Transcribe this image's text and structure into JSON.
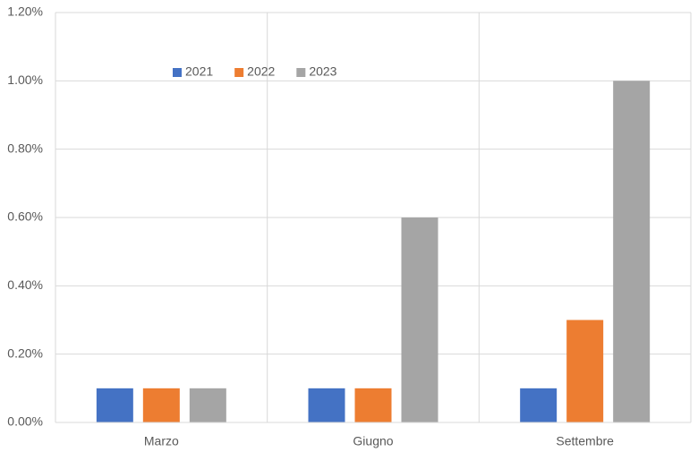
{
  "chart_data": {
    "type": "bar",
    "categories": [
      "Marzo",
      "Giugno",
      "Settembre"
    ],
    "series": [
      {
        "name": "2021",
        "color": "#4472c4",
        "values": [
          0.1,
          0.1,
          0.1
        ]
      },
      {
        "name": "2022",
        "color": "#ed7d31",
        "values": [
          0.1,
          0.1,
          0.3
        ]
      },
      {
        "name": "2023",
        "color": "#a5a5a5",
        "values": [
          0.1,
          0.6,
          1.0
        ]
      }
    ],
    "ylim": [
      0,
      1.2
    ],
    "yticks": [
      {
        "value": 0,
        "label": "0.00%"
      },
      {
        "value": 0.2,
        "label": "0.20%"
      },
      {
        "value": 0.4,
        "label": "0.40%"
      },
      {
        "value": 0.6,
        "label": "0.60%"
      },
      {
        "value": 0.8,
        "label": "0.80%"
      },
      {
        "value": 1.0,
        "label": "1.00%"
      },
      {
        "value": 1.2,
        "label": "1.20%"
      }
    ],
    "grid": true,
    "legend": "top-left"
  }
}
